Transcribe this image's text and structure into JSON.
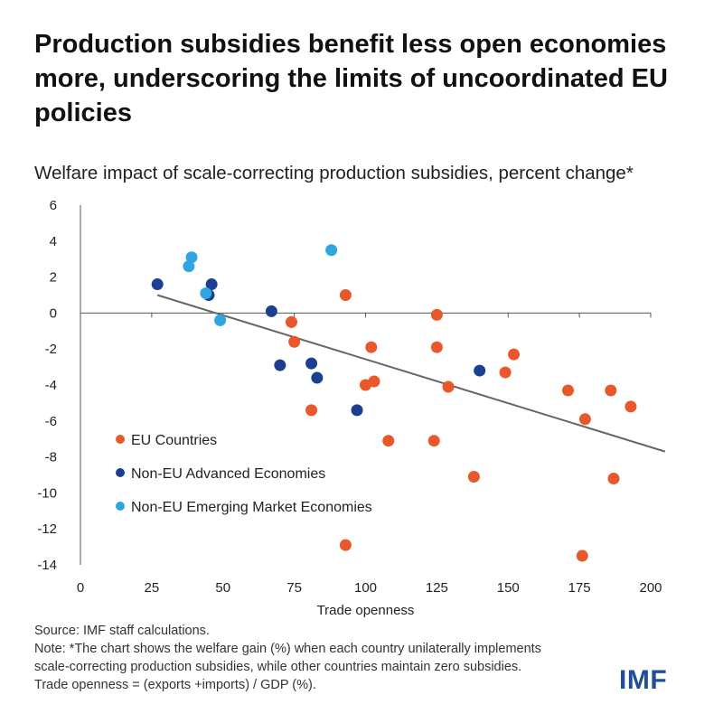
{
  "title": "Production subsidies benefit less open economies more, underscoring the limits of uncoordinated EU policies",
  "subtitle": "Welfare impact of scale-correcting production subsidies, percent change*",
  "footer": {
    "source": "Source: IMF staff calculations.",
    "note_line1": "Note: *The chart shows the welfare gain (%) when each country unilaterally implements",
    "note_line2": "scale-correcting production subsidies, while other countries maintain zero subsidies.",
    "note_line3": "Trade openness = (exports +imports) / GDP (%)."
  },
  "logo": "IMF",
  "chart_data": {
    "type": "scatter",
    "xlabel": "Trade openness",
    "ylabel": "",
    "xlim": [
      0,
      200
    ],
    "ylim": [
      -14,
      6
    ],
    "x_ticks": [
      0,
      25,
      50,
      75,
      100,
      125,
      150,
      175,
      200
    ],
    "y_ticks": [
      6,
      4,
      2,
      0,
      -2,
      -4,
      -6,
      -8,
      -10,
      -12,
      -14
    ],
    "legend_position": "bottom-left",
    "trendline": {
      "x": [
        27,
        205
      ],
      "y": [
        1.0,
        -7.7
      ],
      "color": "#666666"
    },
    "series": [
      {
        "name": "EU Countries",
        "color": "#e8582a",
        "points": [
          {
            "x": 74,
            "y": -0.5
          },
          {
            "x": 75,
            "y": -1.6
          },
          {
            "x": 81,
            "y": -5.4
          },
          {
            "x": 93,
            "y": 1.0
          },
          {
            "x": 93,
            "y": -12.9
          },
          {
            "x": 100,
            "y": -4.0
          },
          {
            "x": 102,
            "y": -1.9
          },
          {
            "x": 103,
            "y": -3.8
          },
          {
            "x": 108,
            "y": -7.1
          },
          {
            "x": 125,
            "y": -0.1
          },
          {
            "x": 125,
            "y": -1.9
          },
          {
            "x": 124,
            "y": -7.1
          },
          {
            "x": 129,
            "y": -4.1
          },
          {
            "x": 138,
            "y": -9.1
          },
          {
            "x": 149,
            "y": -3.3
          },
          {
            "x": 152,
            "y": -2.3
          },
          {
            "x": 171,
            "y": -4.3
          },
          {
            "x": 176,
            "y": -13.5
          },
          {
            "x": 177,
            "y": -5.9
          },
          {
            "x": 186,
            "y": -4.3
          },
          {
            "x": 187,
            "y": -9.2
          },
          {
            "x": 193,
            "y": -5.2
          }
        ]
      },
      {
        "name": "Non-EU Advanced Economies",
        "color": "#1d3f8f",
        "points": [
          {
            "x": 27,
            "y": 1.6
          },
          {
            "x": 45,
            "y": 1.0
          },
          {
            "x": 46,
            "y": 1.6
          },
          {
            "x": 67,
            "y": 0.1
          },
          {
            "x": 70,
            "y": -2.9
          },
          {
            "x": 81,
            "y": -2.8
          },
          {
            "x": 83,
            "y": -3.6
          },
          {
            "x": 97,
            "y": -5.4
          },
          {
            "x": 140,
            "y": -3.2
          }
        ]
      },
      {
        "name": "Non-EU Emerging Market Economies",
        "color": "#2fa6e1",
        "points": [
          {
            "x": 38,
            "y": 2.6
          },
          {
            "x": 39,
            "y": 3.1
          },
          {
            "x": 44,
            "y": 1.1
          },
          {
            "x": 49,
            "y": -0.4
          },
          {
            "x": 88,
            "y": 3.5
          }
        ]
      }
    ]
  }
}
